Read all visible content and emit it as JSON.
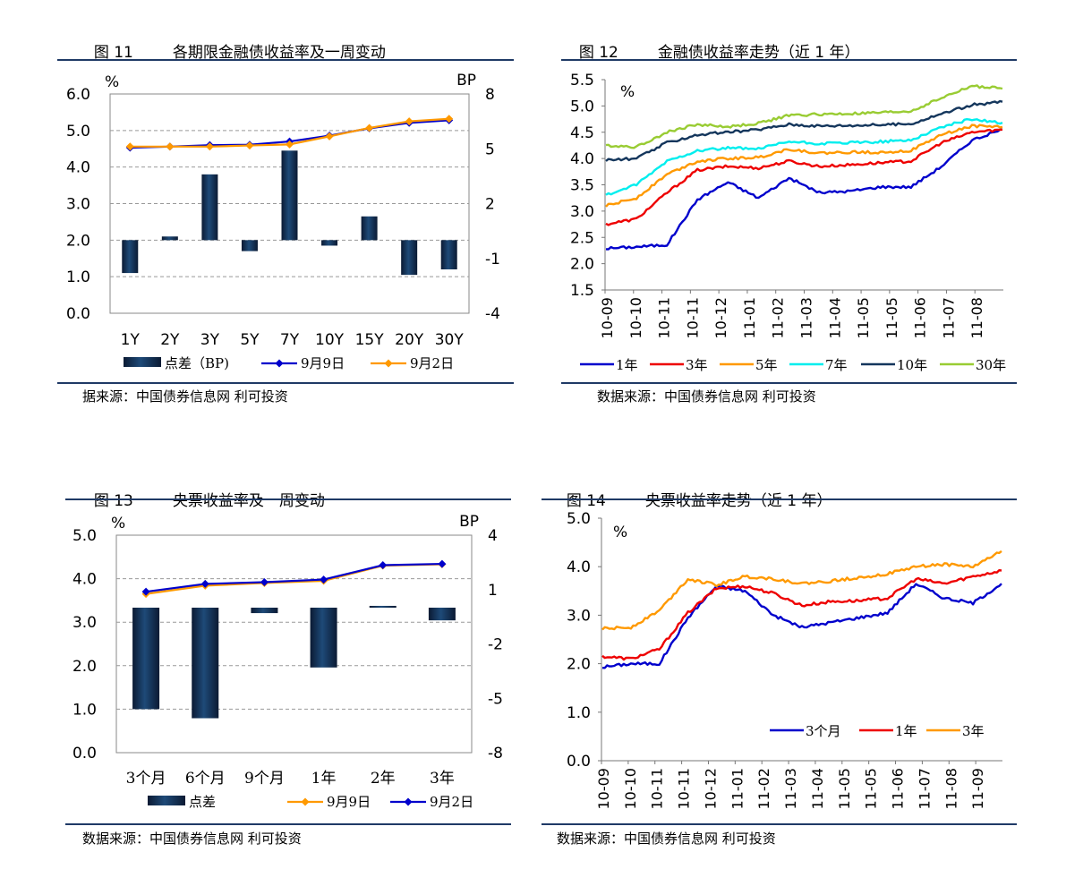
{
  "panels": [
    {
      "figure_no": "图 11",
      "title": "各期限金融债收益率及一周变动",
      "source": "据来源：中国债券信息网    利可投资"
    },
    {
      "figure_no": "图 12",
      "title": "金融债收益率走势（近 1 年）",
      "source": "数据来源：中国债券信息网    利可投资"
    },
    {
      "figure_no": "图 13",
      "title": "央票收益率及一周变动",
      "source": "数据来源：中国债券信息网    利可投资"
    },
    {
      "figure_no": "图 14",
      "title": "央票收益率走势（近 1 年）",
      "source": "数据来源：中国债券信息网    利可投资"
    }
  ],
  "chart_data": [
    {
      "type": "bar",
      "left_unit": "%",
      "right_unit": "BP",
      "categories": [
        "1Y",
        "2Y",
        "3Y",
        "5Y",
        "7Y",
        "10Y",
        "15Y",
        "20Y",
        "30Y"
      ],
      "ylim": [
        0,
        6
      ],
      "yticks": [
        "0.0",
        "1.0",
        "2.0",
        "3.0",
        "4.0",
        "5.0",
        "6.0"
      ],
      "y2lim": [
        -4,
        8
      ],
      "y2ticks": [
        "-4",
        "-1",
        "2",
        "5",
        "8"
      ],
      "bar_series": {
        "name": "点差（BP)",
        "axis": "right",
        "values": [
          -1.8,
          0.2,
          3.6,
          -0.6,
          4.9,
          -0.3,
          1.3,
          -1.9,
          -1.6
        ]
      },
      "line_series": [
        {
          "name": "9月9日",
          "color": "#0000cc",
          "values": [
            4.53,
            4.56,
            4.6,
            4.61,
            4.7,
            4.86,
            5.06,
            5.21,
            5.28
          ]
        },
        {
          "name": "9月2日",
          "color": "#ff9900",
          "values": [
            4.56,
            4.56,
            4.56,
            4.59,
            4.62,
            4.84,
            5.07,
            5.25,
            5.32
          ]
        }
      ]
    },
    {
      "type": "line",
      "unit": "%",
      "ylim": [
        1.5,
        5.5
      ],
      "yticks": [
        "1.5",
        "2.0",
        "2.5",
        "3.0",
        "3.5",
        "4.0",
        "4.5",
        "5.0",
        "5.5"
      ],
      "x": [
        "10-09",
        "10-10",
        "10-11",
        "10-11",
        "10-12",
        "11-01",
        "11-02",
        "11-03",
        "11-04",
        "11-05",
        "11-05",
        "11-06",
        "11-07",
        "11-08"
      ],
      "series": [
        {
          "name": "1年",
          "color": "#0000cc",
          "values": [
            2.29,
            2.32,
            2.36,
            3.22,
            3.55,
            3.25,
            3.63,
            3.35,
            3.38,
            3.46,
            3.46,
            3.85,
            4.35,
            4.55
          ]
        },
        {
          "name": "3年",
          "color": "#ee0000",
          "values": [
            2.75,
            2.85,
            3.35,
            3.78,
            3.85,
            3.82,
            3.95,
            3.85,
            3.88,
            3.92,
            3.95,
            4.3,
            4.5,
            4.55
          ]
        },
        {
          "name": "5年",
          "color": "#ff9900",
          "values": [
            3.1,
            3.25,
            3.7,
            3.95,
            4.0,
            4.02,
            4.18,
            4.1,
            4.12,
            4.12,
            4.15,
            4.45,
            4.62,
            4.6
          ]
        },
        {
          "name": "7年",
          "color": "#00eeee",
          "values": [
            3.3,
            3.5,
            3.95,
            4.15,
            4.2,
            4.18,
            4.32,
            4.28,
            4.3,
            4.32,
            4.35,
            4.6,
            4.75,
            4.68
          ]
        },
        {
          "name": "10年",
          "color": "#14365c",
          "values": [
            3.97,
            4.0,
            4.3,
            4.45,
            4.5,
            4.55,
            4.65,
            4.62,
            4.63,
            4.64,
            4.66,
            4.85,
            5.02,
            5.08
          ]
        },
        {
          "name": "30年",
          "color": "#99cc33",
          "values": [
            4.25,
            4.22,
            4.5,
            4.65,
            4.6,
            4.67,
            4.82,
            4.84,
            4.85,
            4.87,
            4.9,
            5.15,
            5.38,
            5.33
          ]
        }
      ]
    },
    {
      "type": "bar",
      "left_unit": "%",
      "right_unit": "BP",
      "categories": [
        "3个月",
        "6个月",
        "9个月",
        "1年",
        "2年",
        "3年"
      ],
      "ylim": [
        0,
        5
      ],
      "yticks": [
        "0.0",
        "1.0",
        "2.0",
        "3.0",
        "4.0",
        "5.0"
      ],
      "y2lim": [
        -8,
        4
      ],
      "y2ticks": [
        "-8",
        "-5",
        "-2",
        "1",
        "4"
      ],
      "bar_series": {
        "name": "点差",
        "axis": "right",
        "values": [
          -5.6,
          -6.1,
          -0.3,
          -3.3,
          0.1,
          -0.7
        ]
      },
      "line_series": [
        {
          "name": "9月9日",
          "color": "#ff9900",
          "values": [
            3.65,
            3.84,
            3.9,
            3.95,
            4.3,
            4.33
          ]
        },
        {
          "name": "9月2日",
          "color": "#0000cc",
          "values": [
            3.7,
            3.88,
            3.92,
            3.98,
            4.31,
            4.34
          ]
        }
      ]
    },
    {
      "type": "line",
      "unit": "%",
      "ylim": [
        0,
        5
      ],
      "yticks": [
        "0.0",
        "1.0",
        "2.0",
        "3.0",
        "4.0",
        "5.0"
      ],
      "x": [
        "10-09",
        "10-10",
        "10-11",
        "10-11",
        "10-12",
        "11-01",
        "11-02",
        "11-03",
        "11-04",
        "11-05",
        "11-05",
        "11-06",
        "11-07",
        "11-08",
        "11-09"
      ],
      "series": [
        {
          "name": "3个月",
          "color": "#0000cc",
          "values": [
            1.93,
            2.0,
            2.0,
            2.95,
            3.6,
            3.5,
            3.0,
            2.75,
            2.85,
            2.95,
            3.05,
            3.65,
            3.35,
            3.25,
            3.65
          ]
        },
        {
          "name": "1年",
          "color": "#ee0000",
          "values": [
            2.15,
            2.1,
            2.3,
            3.05,
            3.55,
            3.6,
            3.45,
            3.2,
            3.28,
            3.3,
            3.35,
            3.75,
            3.65,
            3.8,
            3.92
          ]
        },
        {
          "name": "3年",
          "color": "#ff9900",
          "values": [
            2.72,
            2.75,
            3.1,
            3.75,
            3.62,
            3.8,
            3.75,
            3.65,
            3.7,
            3.78,
            3.85,
            4.0,
            4.05,
            4.0,
            4.32
          ]
        }
      ]
    }
  ]
}
